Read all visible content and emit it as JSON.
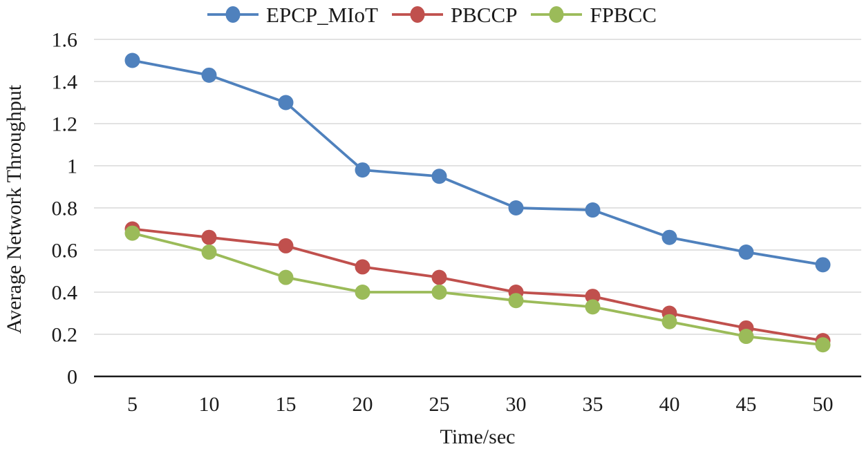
{
  "figure": {
    "background": "#ffffff",
    "text_color": "#1a1a1a",
    "gridline_color": "#d9d9d9",
    "axis_line_color": "#1a1a1a"
  },
  "chart_data": {
    "type": "line",
    "title": "",
    "xlabel": "Time/sec",
    "ylabel": "Average Network Throughput",
    "categories": [
      5,
      10,
      15,
      20,
      25,
      30,
      35,
      40,
      45,
      50
    ],
    "series": [
      {
        "name": "EPCP_MIoT",
        "color": "#4F81BD",
        "values": [
          1.5,
          1.43,
          1.3,
          0.98,
          0.95,
          0.8,
          0.79,
          0.66,
          0.59,
          0.53
        ]
      },
      {
        "name": "PBCCP",
        "color": "#C0504D",
        "values": [
          0.7,
          0.66,
          0.62,
          0.52,
          0.47,
          0.4,
          0.38,
          0.3,
          0.23,
          0.17
        ]
      },
      {
        "name": "FPBCC",
        "color": "#9BBB59",
        "values": [
          0.68,
          0.59,
          0.47,
          0.4,
          0.4,
          0.36,
          0.33,
          0.26,
          0.19,
          0.15
        ]
      }
    ],
    "ylim": [
      0,
      1.6
    ],
    "ytick_step": 0.2,
    "ytick_labels": [
      "0",
      "0.2",
      "0.4",
      "0.6",
      "0.8",
      "1",
      "1.2",
      "1.4",
      "1.6"
    ],
    "grid": "horizontal",
    "legend_position": "top",
    "marker": "circle"
  }
}
